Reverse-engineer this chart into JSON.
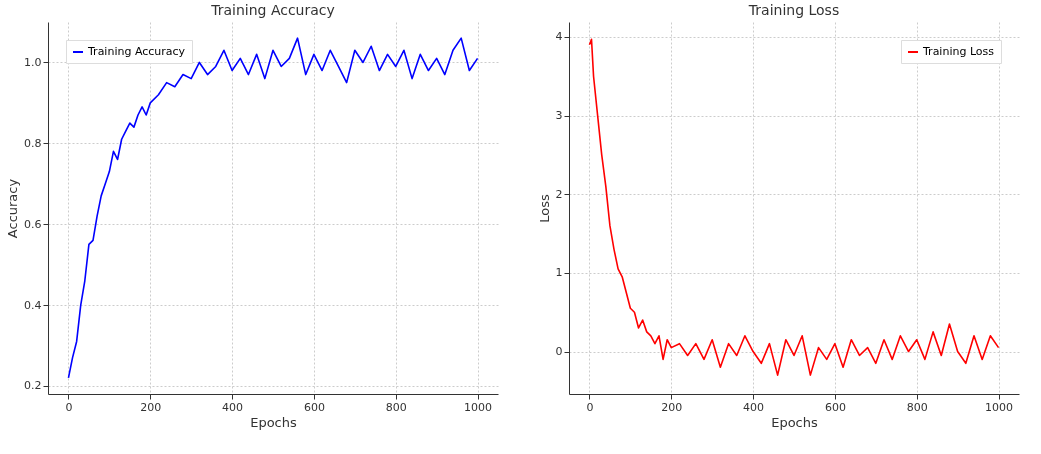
{
  "chart_data": [
    {
      "type": "line",
      "title": "Training Accuracy",
      "xlabel": "Epochs",
      "ylabel": "Accuracy",
      "xlim": [
        -50,
        1050
      ],
      "xticks": [
        0,
        200,
        400,
        600,
        800,
        1000
      ],
      "ylim": [
        0.18,
        1.1
      ],
      "yticks": [
        0.2,
        0.4,
        0.6,
        0.8,
        {
          "value": 1.0,
          "label": "1.0"
        }
      ],
      "grid": true,
      "legend": "top left",
      "x": [
        0,
        10,
        20,
        30,
        40,
        50,
        60,
        70,
        80,
        90,
        100,
        110,
        120,
        130,
        140,
        150,
        160,
        170,
        180,
        190,
        200,
        220,
        240,
        260,
        280,
        300,
        320,
        340,
        360,
        380,
        400,
        420,
        440,
        460,
        480,
        500,
        520,
        540,
        560,
        580,
        600,
        620,
        640,
        660,
        680,
        700,
        720,
        740,
        760,
        780,
        800,
        820,
        840,
        860,
        880,
        900,
        920,
        940,
        960,
        980,
        1000
      ],
      "series": [
        {
          "name": "Training Accuracy",
          "color": "#0000ff",
          "values": [
            0.22,
            0.27,
            0.31,
            0.4,
            0.46,
            0.55,
            0.56,
            0.62,
            0.67,
            0.7,
            0.73,
            0.78,
            0.76,
            0.81,
            0.83,
            0.85,
            0.84,
            0.87,
            0.89,
            0.87,
            0.9,
            0.92,
            0.95,
            0.94,
            0.97,
            0.96,
            1.0,
            0.97,
            0.99,
            1.03,
            0.98,
            1.01,
            0.97,
            1.02,
            0.96,
            1.03,
            0.99,
            1.01,
            1.06,
            0.97,
            1.02,
            0.98,
            1.03,
            0.99,
            0.95,
            1.03,
            1.0,
            1.04,
            0.98,
            1.02,
            0.99,
            1.03,
            0.96,
            1.02,
            0.98,
            1.01,
            0.97,
            1.03,
            1.06,
            0.98,
            1.01
          ]
        }
      ]
    },
    {
      "type": "line",
      "title": "Training Loss",
      "xlabel": "Epochs",
      "ylabel": "Loss",
      "xlim": [
        -50,
        1050
      ],
      "xticks": [
        0,
        200,
        400,
        600,
        800,
        1000
      ],
      "ylim": [
        -0.54,
        4.19
      ],
      "yticks": [
        0,
        1,
        2,
        3,
        4
      ],
      "grid": true,
      "legend": "top right",
      "x": [
        0,
        5,
        10,
        20,
        30,
        40,
        50,
        60,
        70,
        80,
        90,
        100,
        110,
        120,
        130,
        140,
        150,
        160,
        170,
        180,
        190,
        200,
        220,
        240,
        260,
        280,
        300,
        320,
        340,
        360,
        380,
        400,
        420,
        440,
        460,
        480,
        500,
        520,
        540,
        560,
        580,
        600,
        620,
        640,
        660,
        680,
        700,
        720,
        740,
        760,
        780,
        800,
        820,
        840,
        860,
        880,
        900,
        920,
        940,
        960,
        980,
        1000
      ],
      "series": [
        {
          "name": "Training Loss",
          "color": "#ff0000",
          "values": [
            3.9,
            3.97,
            3.5,
            3.0,
            2.5,
            2.1,
            1.6,
            1.3,
            1.05,
            0.95,
            0.75,
            0.55,
            0.5,
            0.3,
            0.4,
            0.25,
            0.2,
            0.1,
            0.2,
            -0.1,
            0.15,
            0.05,
            0.1,
            -0.05,
            0.1,
            -0.1,
            0.15,
            -0.2,
            0.1,
            -0.05,
            0.2,
            0.0,
            -0.15,
            0.1,
            -0.3,
            0.15,
            -0.05,
            0.2,
            -0.3,
            0.05,
            -0.1,
            0.1,
            -0.2,
            0.15,
            -0.05,
            0.05,
            -0.15,
            0.15,
            -0.1,
            0.2,
            0.0,
            0.15,
            -0.1,
            0.25,
            -0.05,
            0.35,
            0.0,
            -0.15,
            0.2,
            -0.1,
            0.2,
            0.05
          ]
        }
      ]
    }
  ]
}
